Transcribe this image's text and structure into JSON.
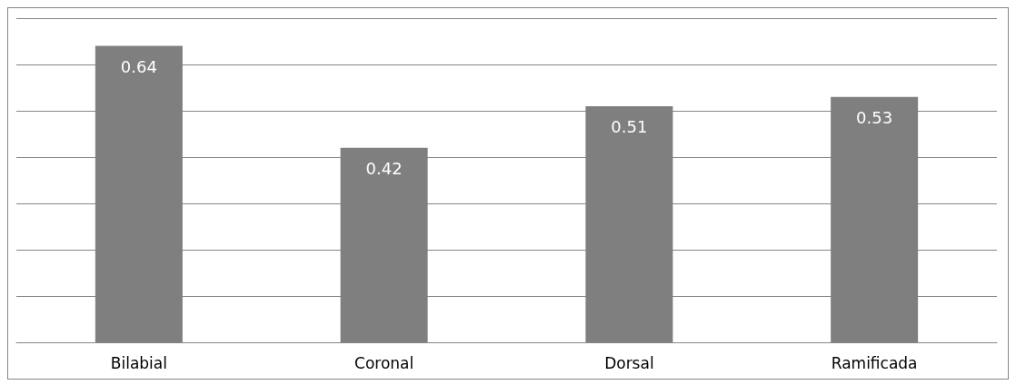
{
  "chart_data": {
    "type": "bar",
    "categories": [
      "Bilabial",
      "Coronal",
      "Dorsal",
      "Ramificada"
    ],
    "values": [
      0.64,
      0.42,
      0.51,
      0.53
    ],
    "color": "#7f7f80",
    "ylim": [
      0,
      0.7
    ],
    "yticks": [
      {
        "value": 0,
        "label": null
      },
      {
        "value": 0.1,
        "label": null
      },
      {
        "value": 0.2,
        "label": null
      },
      {
        "value": 0.3,
        "label": null
      },
      {
        "value": 0.4,
        "label": null
      },
      {
        "value": 0.5,
        "label": null
      },
      {
        "value": 0.6,
        "label": null
      },
      {
        "value": 0.7,
        "label": null
      }
    ],
    "tick_labels": "x",
    "grid": "y",
    "data_labels": true
  }
}
